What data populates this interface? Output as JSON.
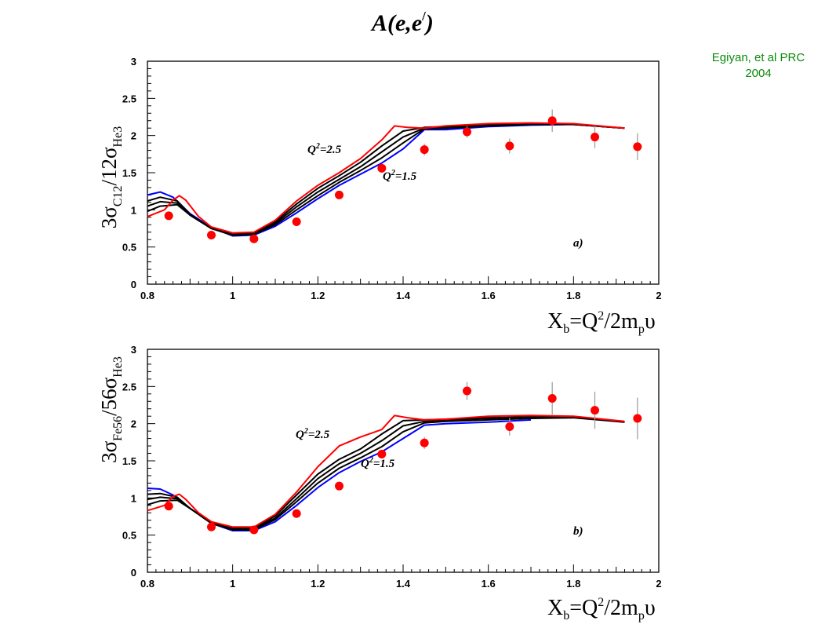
{
  "citation": {
    "line1": "Egiyan, et al PRC",
    "line2": "2004"
  },
  "colors": {
    "data_points": "#ff0000",
    "curve_high_Q2": "#ff0000",
    "curve_low_Q2": "#0000ff",
    "curve_intermediate": "#000000",
    "citation_text": "#0a8a0a"
  },
  "chart_data": [
    {
      "type": "scatter",
      "panel_title": "A(e,e/)",
      "panel_label": "a)",
      "xlabel": "Xb=Q2/2mpυ",
      "ylabel": "3σC12/12σHe3",
      "xlim": [
        0.8,
        2.0
      ],
      "ylim": [
        0,
        3
      ],
      "xticks": [
        "0.8",
        "1",
        "1.2",
        "1.4",
        "1.6",
        "1.8",
        "2"
      ],
      "yticks": [
        "0",
        "0.5",
        "1",
        "1.5",
        "2",
        "2.5",
        "3"
      ],
      "grid": false,
      "annotations": [
        "Q2=2.5",
        "Q2=1.5"
      ],
      "points": [
        {
          "x": 0.85,
          "y": 0.92,
          "err": 0.04
        },
        {
          "x": 0.95,
          "y": 0.66,
          "err": 0.03
        },
        {
          "x": 1.05,
          "y": 0.61,
          "err": 0.03
        },
        {
          "x": 1.15,
          "y": 0.84,
          "err": 0.04
        },
        {
          "x": 1.25,
          "y": 1.2,
          "err": 0.05
        },
        {
          "x": 1.35,
          "y": 1.56,
          "err": 0.06
        },
        {
          "x": 1.45,
          "y": 1.81,
          "err": 0.08
        },
        {
          "x": 1.55,
          "y": 2.05,
          "err": 0.08
        },
        {
          "x": 1.65,
          "y": 1.86,
          "err": 0.1
        },
        {
          "x": 1.75,
          "y": 2.2,
          "err": 0.15
        },
        {
          "x": 1.85,
          "y": 1.98,
          "err": 0.15
        },
        {
          "x": 1.95,
          "y": 1.85,
          "err": 0.18
        }
      ],
      "series": [
        {
          "color": "#0000ff",
          "x": [
            0.8,
            0.83,
            0.86,
            0.9,
            0.95,
            1.0,
            1.05,
            1.1,
            1.15,
            1.2,
            1.25,
            1.3,
            1.35,
            1.4,
            1.45,
            1.5,
            1.6,
            1.7,
            1.8,
            1.92
          ],
          "y": [
            1.2,
            1.24,
            1.17,
            0.95,
            0.76,
            0.65,
            0.66,
            0.78,
            0.96,
            1.15,
            1.33,
            1.48,
            1.63,
            1.82,
            2.08,
            2.08,
            2.12,
            2.14,
            2.15,
            2.1
          ]
        },
        {
          "color": "#000000",
          "x": [
            0.8,
            0.83,
            0.87,
            0.9,
            0.95,
            1.0,
            1.05,
            1.1,
            1.15,
            1.2,
            1.25,
            1.3,
            1.35,
            1.4,
            1.45,
            1.5,
            1.6,
            1.7,
            1.8,
            1.92
          ],
          "y": [
            1.12,
            1.17,
            1.12,
            0.94,
            0.75,
            0.66,
            0.67,
            0.8,
            1.0,
            1.19,
            1.37,
            1.53,
            1.7,
            1.9,
            2.09,
            2.1,
            2.13,
            2.15,
            2.15,
            2.1
          ]
        },
        {
          "color": "#000000",
          "x": [
            0.8,
            0.83,
            0.87,
            0.9,
            0.95,
            1.0,
            1.05,
            1.1,
            1.15,
            1.2,
            1.25,
            1.3,
            1.35,
            1.4,
            1.45,
            1.5,
            1.6,
            1.7,
            1.8,
            1.92
          ],
          "y": [
            1.05,
            1.11,
            1.09,
            0.93,
            0.75,
            0.66,
            0.68,
            0.82,
            1.04,
            1.24,
            1.41,
            1.58,
            1.78,
            1.98,
            2.1,
            2.11,
            2.14,
            2.15,
            2.15,
            2.1
          ]
        },
        {
          "color": "#000000",
          "x": [
            0.8,
            0.83,
            0.87,
            0.9,
            0.95,
            1.0,
            1.05,
            1.1,
            1.15,
            1.2,
            1.25,
            1.3,
            1.35,
            1.4,
            1.45,
            1.5,
            1.6,
            1.7,
            1.8,
            1.92
          ],
          "y": [
            0.98,
            1.05,
            1.07,
            0.93,
            0.75,
            0.67,
            0.69,
            0.84,
            1.08,
            1.29,
            1.46,
            1.64,
            1.86,
            2.06,
            2.11,
            2.12,
            2.14,
            2.15,
            2.15,
            2.1
          ]
        },
        {
          "color": "#ff0000",
          "x": [
            0.8,
            0.84,
            0.86,
            0.875,
            0.89,
            0.92,
            0.95,
            1.0,
            1.05,
            1.1,
            1.15,
            1.2,
            1.25,
            1.3,
            1.35,
            1.38,
            1.41,
            1.45,
            1.5,
            1.6,
            1.7,
            1.8,
            1.92
          ],
          "y": [
            0.91,
            1.0,
            1.13,
            1.19,
            1.13,
            0.91,
            0.77,
            0.69,
            0.7,
            0.86,
            1.12,
            1.33,
            1.5,
            1.69,
            1.94,
            2.13,
            2.11,
            2.1,
            2.13,
            2.16,
            2.17,
            2.16,
            2.1
          ]
        }
      ]
    },
    {
      "type": "scatter",
      "panel_label": "b)",
      "xlabel": "Xb=Q2/2mpυ",
      "ylabel": "3σFe56/56σHe3",
      "xlim": [
        0.8,
        2.0
      ],
      "ylim": [
        0,
        3
      ],
      "xticks": [
        "0.8",
        "1",
        "1.2",
        "1.4",
        "1.6",
        "1.8",
        "2"
      ],
      "yticks": [
        "0",
        "0.5",
        "1",
        "1.5",
        "2",
        "2.5",
        "3"
      ],
      "grid": false,
      "annotations": [
        "Q2=2.5",
        "Q2=1.5"
      ],
      "points": [
        {
          "x": 0.85,
          "y": 0.89,
          "err": 0.04
        },
        {
          "x": 0.95,
          "y": 0.61,
          "err": 0.03
        },
        {
          "x": 1.05,
          "y": 0.57,
          "err": 0.03
        },
        {
          "x": 1.15,
          "y": 0.79,
          "err": 0.04
        },
        {
          "x": 1.25,
          "y": 1.16,
          "err": 0.05
        },
        {
          "x": 1.35,
          "y": 1.59,
          "err": 0.06
        },
        {
          "x": 1.45,
          "y": 1.74,
          "err": 0.08
        },
        {
          "x": 1.55,
          "y": 2.44,
          "err": 0.12
        },
        {
          "x": 1.65,
          "y": 1.96,
          "err": 0.12
        },
        {
          "x": 1.75,
          "y": 2.34,
          "err": 0.22
        },
        {
          "x": 1.85,
          "y": 2.18,
          "err": 0.25
        },
        {
          "x": 1.95,
          "y": 2.07,
          "err": 0.28
        }
      ],
      "series": [
        {
          "color": "#0000ff",
          "x": [
            0.8,
            0.83,
            0.86,
            0.9,
            0.95,
            1.0,
            1.05,
            1.1,
            1.15,
            1.2,
            1.25,
            1.3,
            1.35,
            1.4,
            1.45,
            1.5,
            1.6,
            1.7
          ],
          "y": [
            1.13,
            1.12,
            1.04,
            0.86,
            0.66,
            0.56,
            0.56,
            0.68,
            0.9,
            1.14,
            1.34,
            1.49,
            1.62,
            1.8,
            1.98,
            2.0,
            2.02,
            2.05
          ]
        },
        {
          "color": "#000000",
          "x": [
            0.8,
            0.83,
            0.87,
            0.9,
            0.95,
            1.0,
            1.05,
            1.1,
            1.15,
            1.2,
            1.25,
            1.3,
            1.35,
            1.4,
            1.45,
            1.5,
            1.6,
            1.7,
            1.8
          ],
          "y": [
            1.05,
            1.06,
            1.01,
            0.86,
            0.66,
            0.57,
            0.57,
            0.71,
            0.95,
            1.2,
            1.4,
            1.54,
            1.69,
            1.89,
            2.01,
            2.03,
            2.05,
            2.07,
            2.08
          ]
        },
        {
          "color": "#000000",
          "x": [
            0.8,
            0.83,
            0.87,
            0.9,
            0.95,
            1.0,
            1.05,
            1.1,
            1.15,
            1.2,
            1.25,
            1.3,
            1.35,
            1.4,
            1.45,
            1.5,
            1.6,
            1.7,
            1.8,
            1.92
          ],
          "y": [
            0.98,
            1.01,
            0.99,
            0.86,
            0.66,
            0.58,
            0.58,
            0.73,
            0.99,
            1.26,
            1.46,
            1.6,
            1.77,
            1.97,
            2.03,
            2.05,
            2.07,
            2.08,
            2.08,
            2.02
          ]
        },
        {
          "color": "#000000",
          "x": [
            0.8,
            0.83,
            0.87,
            0.9,
            0.95,
            1.0,
            1.05,
            1.1,
            1.15,
            1.2,
            1.25,
            1.3,
            1.35,
            1.4,
            1.45,
            1.5,
            1.6,
            1.7,
            1.8,
            1.92
          ],
          "y": [
            0.91,
            0.96,
            0.97,
            0.86,
            0.67,
            0.59,
            0.59,
            0.76,
            1.04,
            1.32,
            1.52,
            1.66,
            1.86,
            2.04,
            2.05,
            2.06,
            2.08,
            2.09,
            2.09,
            2.02
          ]
        },
        {
          "color": "#ff0000",
          "x": [
            0.8,
            0.84,
            0.86,
            0.875,
            0.89,
            0.92,
            0.95,
            1.0,
            1.05,
            1.1,
            1.15,
            1.2,
            1.25,
            1.3,
            1.35,
            1.38,
            1.41,
            1.45,
            1.5,
            1.6,
            1.7,
            1.8,
            1.92
          ],
          "y": [
            0.83,
            0.9,
            1.02,
            1.05,
            0.98,
            0.8,
            0.68,
            0.61,
            0.61,
            0.78,
            1.08,
            1.42,
            1.7,
            1.82,
            1.92,
            2.11,
            2.08,
            2.05,
            2.06,
            2.1,
            2.11,
            2.1,
            2.03
          ]
        }
      ]
    }
  ]
}
